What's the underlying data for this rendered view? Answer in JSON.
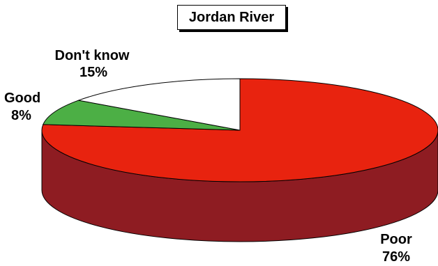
{
  "chart_data": {
    "type": "pie",
    "title": "Jordan River",
    "slices": [
      {
        "label": "Poor",
        "value": 76,
        "value_label": "76%",
        "color": "#e8230f",
        "side_color": "#8e1c22"
      },
      {
        "label": "Good",
        "value": 8,
        "value_label": "8%",
        "color": "#4caf45",
        "side_color": "#2f7a2a"
      },
      {
        "label": "Don't know",
        "value": 15,
        "value_label": "15%",
        "color": "#ffffff",
        "side_color": "#dddddd"
      }
    ]
  }
}
